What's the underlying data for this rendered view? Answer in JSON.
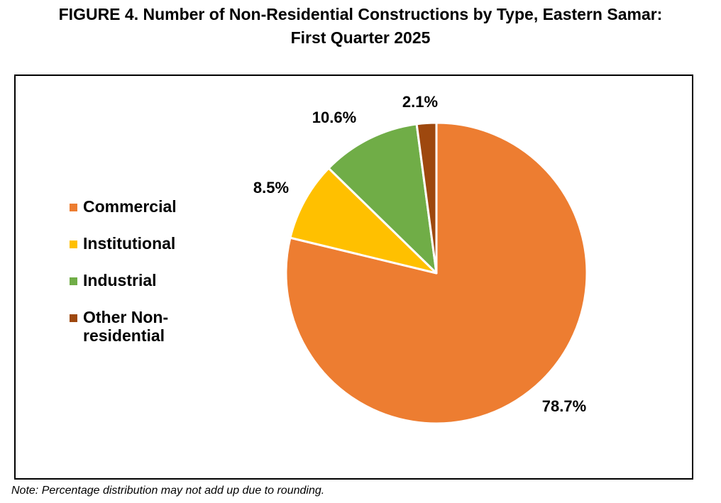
{
  "title_line1": "FIGURE 4. Number of Non-Residential Constructions by Type, Eastern Samar:",
  "title_line2": "First Quarter 2025",
  "note": "Note: Percentage distribution may not add up due to rounding.",
  "chart_data": {
    "type": "pie",
    "title": "FIGURE 4. Number of Non-Residential Constructions by Type, Eastern Samar: First Quarter 2025",
    "slices": [
      {
        "name": "Commercial",
        "value": 78.7,
        "label": "78.7%",
        "color": "#ED7D31"
      },
      {
        "name": "Institutional",
        "value": 8.5,
        "label": "8.5%",
        "color": "#FFC000"
      },
      {
        "name": "Industrial",
        "value": 10.6,
        "label": "10.6%",
        "color": "#70AD47"
      },
      {
        "name": "Other Non-residential",
        "value": 2.1,
        "label": "2.1%",
        "color": "#9E480E"
      }
    ],
    "legend_placement": "left",
    "legend": [
      {
        "line1": "Commercial"
      },
      {
        "line1": "Institutional"
      },
      {
        "line1": "Industrial"
      },
      {
        "line1": "Other Non-",
        "line2": "residential"
      }
    ]
  }
}
